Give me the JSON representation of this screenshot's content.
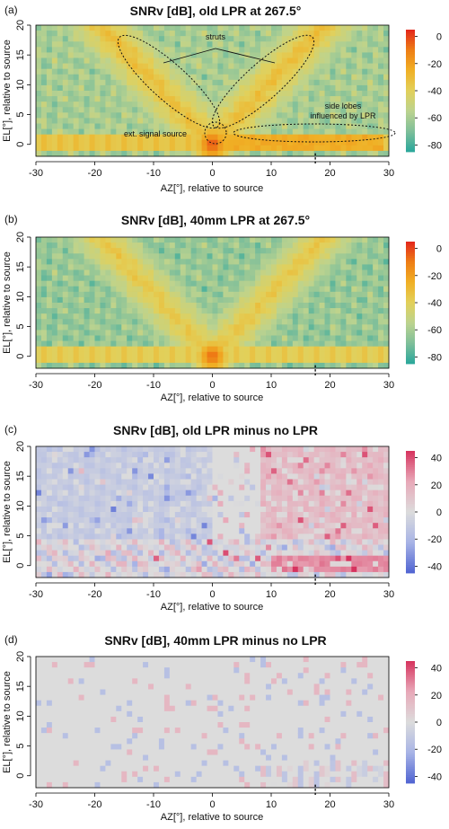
{
  "chart_data": [
    {
      "type": "heatmap",
      "panel_label": "(a)",
      "title": "SNRv [dB], old LPR at 267.5°",
      "xlabel": "AZ[°], relative to source",
      "ylabel": "EL[°], relative to source",
      "xlim": [
        -30,
        30
      ],
      "ylim": [
        -2,
        20
      ],
      "x_ticks": [
        "-30",
        "-20",
        "-10",
        "0",
        "10",
        "20",
        "30"
      ],
      "y_ticks": [
        "0",
        "5",
        "10",
        "15",
        "20"
      ],
      "colorbar": {
        "ticks": [
          "0",
          "-20",
          "-40",
          "-60",
          "-80"
        ],
        "range": [
          -85,
          5
        ],
        "colors": [
          "#2aa79b",
          "#7fbf9a",
          "#bcd38f",
          "#e2d05a",
          "#f0b025",
          "#ee7d15",
          "#e3261c"
        ]
      },
      "dashed_marker_az": 17.5,
      "annotations": [
        "struts",
        "side lobes",
        "influenced by LPR",
        "ext. signal source"
      ],
      "pattern": "old"
    },
    {
      "type": "heatmap",
      "panel_label": "(b)",
      "title": "SNRv [dB], 40mm LPR at 267.5°",
      "xlabel": "AZ[°], relative to source",
      "ylabel": "EL[°], relative to source",
      "xlim": [
        -30,
        30
      ],
      "ylim": [
        -2,
        20
      ],
      "x_ticks": [
        "-30",
        "-20",
        "-10",
        "0",
        "10",
        "20",
        "30"
      ],
      "y_ticks": [
        "0",
        "5",
        "10",
        "15",
        "20"
      ],
      "colorbar": {
        "ticks": [
          "0",
          "-20",
          "-40",
          "-60",
          "-80"
        ],
        "range": [
          -85,
          5
        ],
        "colors": [
          "#2aa79b",
          "#7fbf9a",
          "#bcd38f",
          "#e2d05a",
          "#f0b025",
          "#ee7d15",
          "#e3261c"
        ]
      },
      "dashed_marker_az": 17.5,
      "pattern": "new"
    },
    {
      "type": "heatmap",
      "panel_label": "(c)",
      "title": "SNRv [dB], old LPR minus no LPR",
      "xlabel": "AZ[°], relative to source",
      "ylabel": "EL[°], relative to source",
      "xlim": [
        -30,
        30
      ],
      "ylim": [
        -2,
        20
      ],
      "x_ticks": [
        "-30",
        "-20",
        "-10",
        "0",
        "10",
        "20",
        "30"
      ],
      "y_ticks": [
        "0",
        "5",
        "10",
        "15",
        "20"
      ],
      "colorbar": {
        "ticks": [
          "40",
          "20",
          "0",
          "-20",
          "-40"
        ],
        "range": [
          -45,
          45
        ],
        "colors": [
          "#5064d2",
          "#a8b4e6",
          "#dcdcdc",
          "#e8a8b8",
          "#d6335e"
        ]
      },
      "dashed_marker_az": 17.5,
      "pattern": "diff_old"
    },
    {
      "type": "heatmap",
      "panel_label": "(d)",
      "title": "SNRv [dB], 40mm LPR minus no LPR",
      "xlabel": "AZ[°], relative to source",
      "ylabel": "EL[°], relative to source",
      "xlim": [
        -30,
        30
      ],
      "ylim": [
        -2,
        20
      ],
      "x_ticks": [
        "-30",
        "-20",
        "-10",
        "0",
        "10",
        "20",
        "30"
      ],
      "y_ticks": [
        "0",
        "5",
        "10",
        "15",
        "20"
      ],
      "colorbar": {
        "ticks": [
          "40",
          "20",
          "0",
          "-20",
          "-40"
        ],
        "range": [
          -45,
          45
        ],
        "colors": [
          "#5064d2",
          "#a8b4e6",
          "#dcdcdc",
          "#e8a8b8",
          "#d6335e"
        ]
      },
      "dashed_marker_az": 17.5,
      "pattern": "diff_new"
    }
  ]
}
